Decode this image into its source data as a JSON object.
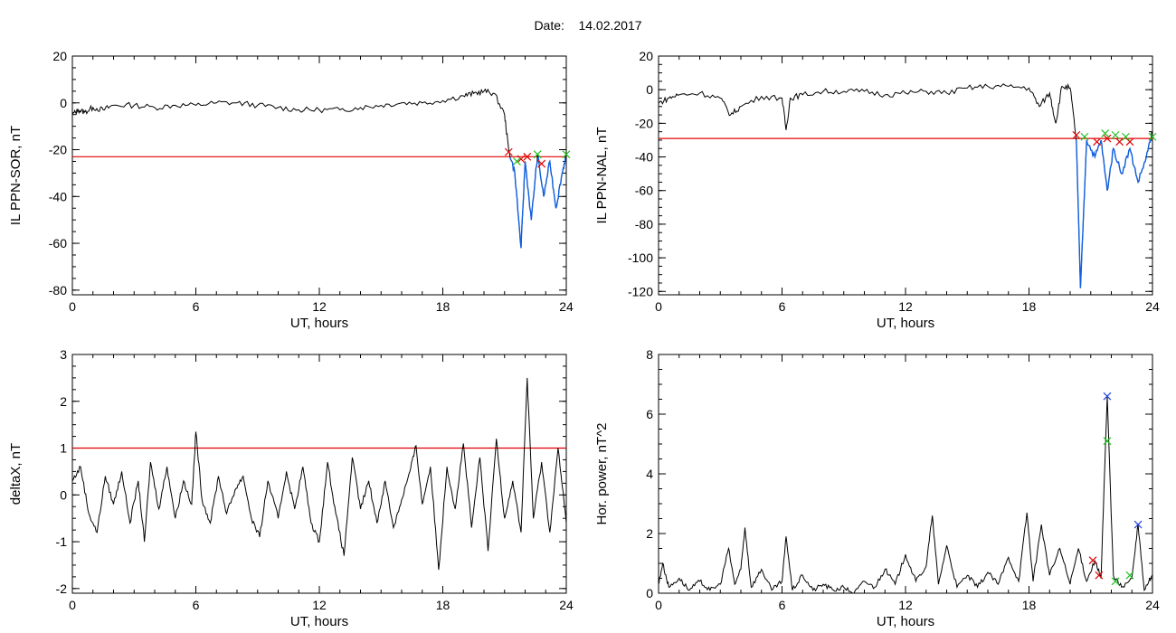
{
  "header": {
    "date_label": "Date:",
    "date_value": "14.02.2017"
  },
  "colors": {
    "data_line": "#000000",
    "threshold": "#e00000",
    "active_segment": "#1060e0",
    "marker_red": "#e00000",
    "marker_green": "#20c020",
    "marker_blue": "#2040e0"
  },
  "chart_data": [
    {
      "id": "sor",
      "type": "line",
      "xlabel": "UT, hours",
      "ylabel": "IL PPN-SOR, nT",
      "xlim": [
        0,
        24
      ],
      "ylim": [
        -82,
        20
      ],
      "xticks": [
        0,
        6,
        12,
        18,
        24
      ],
      "yticks": [
        20,
        0,
        -20,
        -40,
        -60,
        -80
      ],
      "threshold": -23,
      "series_points": [
        [
          0,
          -5
        ],
        [
          0.3,
          -3
        ],
        [
          0.6,
          -4
        ],
        [
          1,
          -2
        ],
        [
          1.5,
          -3
        ],
        [
          2,
          -1
        ],
        [
          3,
          -1
        ],
        [
          4,
          -2
        ],
        [
          5,
          -1
        ],
        [
          6,
          -1
        ],
        [
          7,
          0
        ],
        [
          8,
          0
        ],
        [
          9,
          -1
        ],
        [
          10,
          -2
        ],
        [
          11,
          -3
        ],
        [
          12,
          -3
        ],
        [
          13,
          -3
        ],
        [
          14,
          -2
        ],
        [
          15,
          -1
        ],
        [
          16,
          0
        ],
        [
          17,
          0
        ],
        [
          18,
          1
        ],
        [
          19,
          3
        ],
        [
          19.5,
          4
        ],
        [
          20,
          5
        ],
        [
          20.5,
          4
        ],
        [
          21,
          -5
        ],
        [
          21.2,
          -20
        ],
        [
          21.5,
          -30
        ],
        [
          21.8,
          -62
        ],
        [
          22.0,
          -25
        ],
        [
          22.3,
          -50
        ],
        [
          22.6,
          -22
        ],
        [
          22.9,
          -40
        ],
        [
          23.2,
          -25
        ],
        [
          23.5,
          -45
        ],
        [
          23.8,
          -30
        ],
        [
          24,
          -22
        ]
      ],
      "markers": [
        {
          "x": 21.2,
          "y": -21,
          "color": "red"
        },
        {
          "x": 21.8,
          "y": -24,
          "color": "red"
        },
        {
          "x": 22.1,
          "y": -23,
          "color": "red"
        },
        {
          "x": 22.8,
          "y": -26,
          "color": "red"
        },
        {
          "x": 21.6,
          "y": -25,
          "color": "green"
        },
        {
          "x": 22.6,
          "y": -22,
          "color": "green"
        },
        {
          "x": 24.0,
          "y": -22,
          "color": "green"
        }
      ]
    },
    {
      "id": "nal",
      "type": "line",
      "xlabel": "UT, hours",
      "ylabel": "IL PPN-NAL, nT",
      "xlim": [
        0,
        24
      ],
      "ylim": [
        -122,
        20
      ],
      "xticks": [
        0,
        6,
        12,
        18,
        24
      ],
      "yticks": [
        20,
        0,
        -20,
        -40,
        -60,
        -80,
        -100,
        -120
      ],
      "threshold": -29,
      "series_points": [
        [
          0,
          -8
        ],
        [
          0.5,
          -5
        ],
        [
          1,
          -3
        ],
        [
          2,
          -2
        ],
        [
          3,
          -5
        ],
        [
          3.5,
          -15
        ],
        [
          4,
          -10
        ],
        [
          5,
          -4
        ],
        [
          6,
          -5
        ],
        [
          6.2,
          -24
        ],
        [
          6.4,
          -5
        ],
        [
          7,
          -3
        ],
        [
          8,
          -1
        ],
        [
          9,
          -1
        ],
        [
          10,
          -1
        ],
        [
          11,
          -3
        ],
        [
          12,
          -2
        ],
        [
          13,
          -1
        ],
        [
          14,
          -2
        ],
        [
          15,
          1
        ],
        [
          16,
          2
        ],
        [
          17,
          2
        ],
        [
          18,
          1
        ],
        [
          18.5,
          -10
        ],
        [
          19,
          -2
        ],
        [
          19.3,
          -20
        ],
        [
          19.6,
          2
        ],
        [
          20,
          1
        ],
        [
          20.3,
          -30
        ],
        [
          20.5,
          -118
        ],
        [
          20.8,
          -30
        ],
        [
          21.2,
          -40
        ],
        [
          21.5,
          -30
        ],
        [
          21.8,
          -60
        ],
        [
          22.1,
          -35
        ],
        [
          22.5,
          -50
        ],
        [
          22.9,
          -35
        ],
        [
          23.3,
          -55
        ],
        [
          23.7,
          -40
        ],
        [
          24,
          -25
        ]
      ],
      "markers": [
        {
          "x": 20.3,
          "y": -27,
          "color": "red"
        },
        {
          "x": 21.3,
          "y": -31,
          "color": "red"
        },
        {
          "x": 21.8,
          "y": -29,
          "color": "red"
        },
        {
          "x": 22.4,
          "y": -31,
          "color": "red"
        },
        {
          "x": 22.9,
          "y": -31,
          "color": "red"
        },
        {
          "x": 20.7,
          "y": -28,
          "color": "green"
        },
        {
          "x": 21.7,
          "y": -26,
          "color": "green"
        },
        {
          "x": 22.2,
          "y": -27,
          "color": "green"
        },
        {
          "x": 22.7,
          "y": -28,
          "color": "green"
        },
        {
          "x": 24.0,
          "y": -28,
          "color": "green"
        }
      ]
    },
    {
      "id": "deltax",
      "type": "line",
      "xlabel": "UT, hours",
      "ylabel": "deltaX, nT",
      "xlim": [
        0,
        24
      ],
      "ylim": [
        -2.1,
        3
      ],
      "xticks": [
        0,
        6,
        12,
        18,
        24
      ],
      "yticks": [
        3,
        2,
        1,
        0,
        -1,
        -2
      ],
      "threshold": 1,
      "series_points": [
        [
          0,
          0.3
        ],
        [
          0.4,
          0.6
        ],
        [
          0.8,
          -0.4
        ],
        [
          1.2,
          -0.8
        ],
        [
          1.6,
          0.4
        ],
        [
          2.0,
          -0.2
        ],
        [
          2.4,
          0.5
        ],
        [
          2.8,
          -0.6
        ],
        [
          3.2,
          0.3
        ],
        [
          3.5,
          -1.0
        ],
        [
          3.8,
          0.7
        ],
        [
          4.2,
          -0.3
        ],
        [
          4.6,
          0.6
        ],
        [
          5.0,
          -0.5
        ],
        [
          5.4,
          0.3
        ],
        [
          5.8,
          -0.2
        ],
        [
          6.0,
          1.35
        ],
        [
          6.3,
          -0.1
        ],
        [
          6.7,
          -0.6
        ],
        [
          7.1,
          0.4
        ],
        [
          7.5,
          -0.4
        ],
        [
          7.9,
          0.1
        ],
        [
          8.3,
          0.4
        ],
        [
          8.7,
          -0.5
        ],
        [
          9.1,
          -0.9
        ],
        [
          9.5,
          0.3
        ],
        [
          10.0,
          -0.5
        ],
        [
          10.4,
          0.5
        ],
        [
          10.8,
          -0.3
        ],
        [
          11.2,
          0.6
        ],
        [
          11.6,
          -0.6
        ],
        [
          12.0,
          -1.0
        ],
        [
          12.4,
          0.7
        ],
        [
          12.8,
          -0.4
        ],
        [
          13.2,
          -1.3
        ],
        [
          13.6,
          0.8
        ],
        [
          14.0,
          -0.3
        ],
        [
          14.4,
          0.3
        ],
        [
          14.8,
          -0.6
        ],
        [
          15.2,
          0.3
        ],
        [
          15.6,
          -0.7
        ],
        [
          16.0,
          -0.1
        ],
        [
          16.4,
          0.5
        ],
        [
          16.7,
          1.05
        ],
        [
          17.0,
          -0.2
        ],
        [
          17.4,
          0.6
        ],
        [
          17.8,
          -1.6
        ],
        [
          18.2,
          0.6
        ],
        [
          18.6,
          -0.3
        ],
        [
          19.0,
          1.1
        ],
        [
          19.4,
          -0.7
        ],
        [
          19.8,
          0.8
        ],
        [
          20.2,
          -1.2
        ],
        [
          20.6,
          1.2
        ],
        [
          21.0,
          -0.5
        ],
        [
          21.4,
          0.3
        ],
        [
          21.8,
          -0.8
        ],
        [
          22.1,
          2.5
        ],
        [
          22.4,
          -0.5
        ],
        [
          22.8,
          0.7
        ],
        [
          23.2,
          -0.8
        ],
        [
          23.6,
          1.0
        ],
        [
          24,
          -0.6
        ]
      ],
      "markers": []
    },
    {
      "id": "power",
      "type": "line",
      "xlabel": "UT, hours",
      "ylabel": "Hor. power, nT^2",
      "xlim": [
        0,
        24
      ],
      "ylim": [
        0,
        8
      ],
      "xticks": [
        0,
        6,
        12,
        18,
        24
      ],
      "yticks": [
        8,
        6,
        4,
        2,
        0
      ],
      "threshold": null,
      "series_points": [
        [
          0,
          0.3
        ],
        [
          0.2,
          1.0
        ],
        [
          0.5,
          0.2
        ],
        [
          1.0,
          0.5
        ],
        [
          1.5,
          0.1
        ],
        [
          2.0,
          0.4
        ],
        [
          2.5,
          0.1
        ],
        [
          3.0,
          0.3
        ],
        [
          3.4,
          1.5
        ],
        [
          3.7,
          0.3
        ],
        [
          4.0,
          0.8
        ],
        [
          4.2,
          2.2
        ],
        [
          4.5,
          0.2
        ],
        [
          5.0,
          0.8
        ],
        [
          5.5,
          0.1
        ],
        [
          6.0,
          0.4
        ],
        [
          6.2,
          1.9
        ],
        [
          6.5,
          0.1
        ],
        [
          7.0,
          0.6
        ],
        [
          7.5,
          0.1
        ],
        [
          8.0,
          0.3
        ],
        [
          8.5,
          0.1
        ],
        [
          9.0,
          0.2
        ],
        [
          9.5,
          0.0
        ],
        [
          10.0,
          0.4
        ],
        [
          10.5,
          0.2
        ],
        [
          11.0,
          0.8
        ],
        [
          11.5,
          0.3
        ],
        [
          12.0,
          1.3
        ],
        [
          12.5,
          0.4
        ],
        [
          13.0,
          0.9
        ],
        [
          13.3,
          2.6
        ],
        [
          13.6,
          0.3
        ],
        [
          14.0,
          1.6
        ],
        [
          14.5,
          0.2
        ],
        [
          15.0,
          0.6
        ],
        [
          15.5,
          0.2
        ],
        [
          16.0,
          0.7
        ],
        [
          16.5,
          0.3
        ],
        [
          17.0,
          1.2
        ],
        [
          17.5,
          0.4
        ],
        [
          17.9,
          2.7
        ],
        [
          18.2,
          0.4
        ],
        [
          18.6,
          2.3
        ],
        [
          19.0,
          0.6
        ],
        [
          19.5,
          1.5
        ],
        [
          20.0,
          0.3
        ],
        [
          20.4,
          1.5
        ],
        [
          20.8,
          0.4
        ],
        [
          21.2,
          1.1
        ],
        [
          21.5,
          0.5
        ],
        [
          21.8,
          6.6
        ],
        [
          22.1,
          0.6
        ],
        [
          22.5,
          0.2
        ],
        [
          23.0,
          0.5
        ],
        [
          23.3,
          2.3
        ],
        [
          23.6,
          0.1
        ],
        [
          24,
          0.6
        ]
      ],
      "markers": [
        {
          "x": 21.8,
          "y": 6.6,
          "color": "blue"
        },
        {
          "x": 23.3,
          "y": 2.3,
          "color": "blue"
        },
        {
          "x": 21.8,
          "y": 5.1,
          "color": "green"
        },
        {
          "x": 22.9,
          "y": 0.6,
          "color": "green"
        },
        {
          "x": 22.2,
          "y": 0.4,
          "color": "green"
        },
        {
          "x": 21.1,
          "y": 1.1,
          "color": "red"
        },
        {
          "x": 21.4,
          "y": 0.6,
          "color": "red"
        }
      ]
    }
  ]
}
